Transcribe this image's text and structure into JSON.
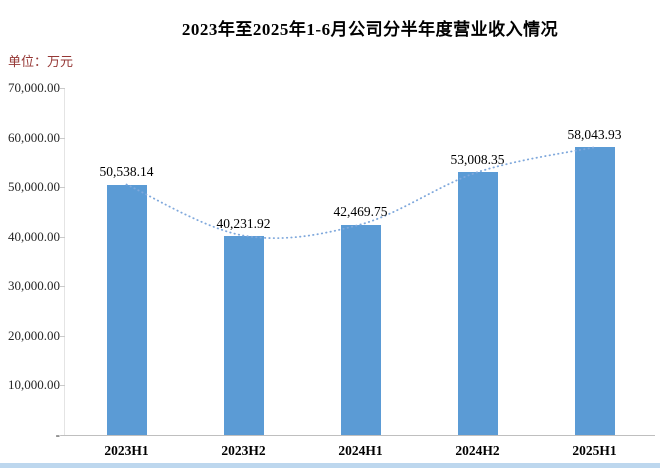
{
  "chart_data": {
    "type": "bar",
    "title": "2023年至2025年1-6月公司分半年度营业收入情况",
    "unit_label": "单位：万元",
    "categories": [
      "2023H1",
      "2023H2",
      "2024H1",
      "2024H2",
      "2025H1"
    ],
    "values": [
      50538.14,
      40231.92,
      42469.75,
      53008.35,
      58043.93
    ],
    "value_labels": [
      "50,538.14",
      "40,231.92",
      "42,469.75",
      "53,008.35",
      "58,043.93"
    ],
    "xlabel": "",
    "ylabel": "",
    "ylim": [
      0,
      70000
    ],
    "ytick_interval": 10000,
    "ytick_labels": [
      "70,000.00",
      "60,000.00",
      "50,000.00",
      "40,000.00",
      "30,000.00",
      "20,000.00",
      "10,000.00",
      "-"
    ],
    "grid": false,
    "legend": false,
    "trend_line": {
      "style": "dotted-smooth",
      "through": "bar-tops"
    },
    "colors": {
      "bar": "#5B9BD5",
      "trend_line": "#7FA8DC",
      "title": "#000000",
      "unit_label": "#953735",
      "axis_line": "#BFBFBF",
      "y_axis_line": "#E4E4E4",
      "tick": "#C9C9C9",
      "axis_text": "#262626",
      "bottom_strip": "#BDD7EE",
      "background": "#FFFFFF"
    }
  }
}
